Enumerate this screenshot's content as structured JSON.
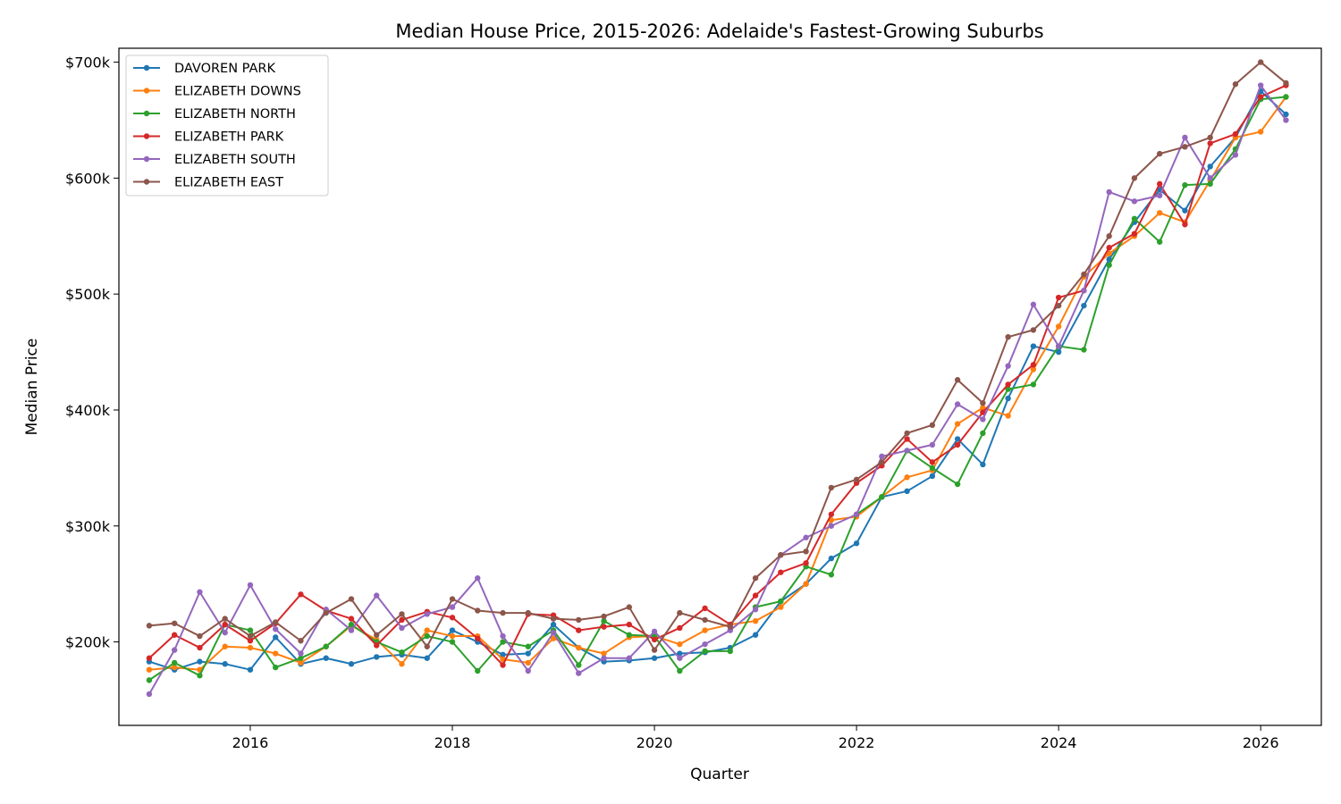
{
  "chart_data": {
    "type": "line",
    "title": "Median House Price, 2015-2026: Adelaide's Fastest-Growing Suburbs",
    "xlabel": "Quarter",
    "ylabel": "Median Price",
    "xlim": [
      2014.7,
      2026.6
    ],
    "ylim": [
      128000,
      712000
    ],
    "x_ticks": [
      2016,
      2018,
      2020,
      2022,
      2024,
      2026
    ],
    "x_tick_labels": [
      "2016",
      "2018",
      "2020",
      "2022",
      "2024",
      "2026"
    ],
    "y_ticks": [
      200000,
      300000,
      400000,
      500000,
      600000,
      700000
    ],
    "y_tick_labels": [
      "$200k",
      "$300k",
      "$400k",
      "$500k",
      "$600k",
      "$700k"
    ],
    "grid": false,
    "legend_position": "top-left",
    "x": [
      2015.0,
      2015.25,
      2015.5,
      2015.75,
      2016.0,
      2016.25,
      2016.5,
      2016.75,
      2017.0,
      2017.25,
      2017.5,
      2017.75,
      2018.0,
      2018.25,
      2018.5,
      2018.75,
      2019.0,
      2019.25,
      2019.5,
      2019.75,
      2020.0,
      2020.25,
      2020.5,
      2020.75,
      2021.0,
      2021.25,
      2021.5,
      2021.75,
      2022.0,
      2022.25,
      2022.5,
      2022.75,
      2023.0,
      2023.25,
      2023.5,
      2023.75,
      2024.0,
      2024.25,
      2024.5,
      2024.75,
      2025.0,
      2025.25,
      2025.5,
      2025.75,
      2026.0,
      2026.25
    ],
    "series": [
      {
        "name": "DAVOREN PARK",
        "color": "#1f77b4",
        "values": [
          183000,
          176000,
          183000,
          181000,
          176000,
          204000,
          181000,
          186000,
          181000,
          187000,
          189000,
          186000,
          210000,
          200000,
          189000,
          190000,
          215000,
          195000,
          183000,
          184000,
          186000,
          190000,
          191000,
          195000,
          206000,
          235000,
          250000,
          272000,
          285000,
          325000,
          330000,
          343000,
          375000,
          353000,
          410000,
          455000,
          450000,
          490000,
          530000,
          562000,
          590000,
          572000,
          610000,
          635000,
          675000,
          655000
        ]
      },
      {
        "name": "ELIZABETH DOWNS",
        "color": "#ff7f0e",
        "values": [
          176000,
          178000,
          176000,
          196000,
          195000,
          190000,
          182000,
          196000,
          214000,
          202000,
          181000,
          210000,
          205000,
          205000,
          185000,
          182000,
          203000,
          195000,
          190000,
          204000,
          205000,
          198000,
          210000,
          215000,
          218000,
          230000,
          250000,
          305000,
          308000,
          325000,
          342000,
          348000,
          388000,
          402000,
          395000,
          435000,
          472000,
          515000,
          535000,
          550000,
          570000,
          562000,
          598000,
          635000,
          640000,
          670000
        ]
      },
      {
        "name": "ELIZABETH NORTH",
        "color": "#2ca02c",
        "values": [
          167000,
          182000,
          171000,
          215000,
          210000,
          178000,
          186000,
          196000,
          215000,
          200000,
          191000,
          205000,
          200000,
          175000,
          200000,
          196000,
          210000,
          180000,
          218000,
          206000,
          205000,
          175000,
          192000,
          192000,
          230000,
          235000,
          265000,
          258000,
          310000,
          325000,
          365000,
          350000,
          336000,
          380000,
          418000,
          422000,
          455000,
          452000,
          525000,
          565000,
          545000,
          594000,
          595000,
          625000,
          668000,
          670000
        ]
      },
      {
        "name": "ELIZABETH PARK",
        "color": "#d62728",
        "values": [
          186000,
          206000,
          195000,
          215000,
          201000,
          216000,
          241000,
          227000,
          220000,
          197000,
          219000,
          226000,
          221000,
          203000,
          180000,
          224000,
          223000,
          210000,
          213000,
          215000,
          202000,
          212000,
          229000,
          215000,
          240000,
          260000,
          268000,
          310000,
          337000,
          352000,
          375000,
          355000,
          370000,
          398000,
          422000,
          439000,
          497000,
          503000,
          540000,
          552000,
          595000,
          560000,
          630000,
          638000,
          670000,
          680000
        ]
      },
      {
        "name": "ELIZABETH SOUTH",
        "color": "#9467bd",
        "values": [
          155000,
          193000,
          243000,
          208000,
          249000,
          211000,
          190000,
          228000,
          210000,
          240000,
          212000,
          224000,
          230000,
          255000,
          205000,
          175000,
          208000,
          173000,
          186000,
          186000,
          209000,
          186000,
          198000,
          210000,
          228000,
          275000,
          290000,
          300000,
          310000,
          360000,
          365000,
          370000,
          405000,
          392000,
          438000,
          491000,
          455000,
          503000,
          588000,
          580000,
          585000,
          635000,
          600000,
          620000,
          680000,
          650000
        ]
      },
      {
        "name": "ELIZABETH EAST",
        "color": "#8c564b",
        "values": [
          214000,
          216000,
          205000,
          220000,
          205000,
          217000,
          201000,
          225000,
          237000,
          206000,
          224000,
          196000,
          237000,
          227000,
          225000,
          225000,
          220000,
          219000,
          222000,
          230000,
          193000,
          225000,
          219000,
          213000,
          255000,
          275000,
          278000,
          333000,
          340000,
          355000,
          380000,
          387000,
          426000,
          406000,
          463000,
          469000,
          490000,
          517000,
          550000,
          600000,
          621000,
          627000,
          635000,
          681000,
          700000,
          682000
        ]
      }
    ]
  }
}
